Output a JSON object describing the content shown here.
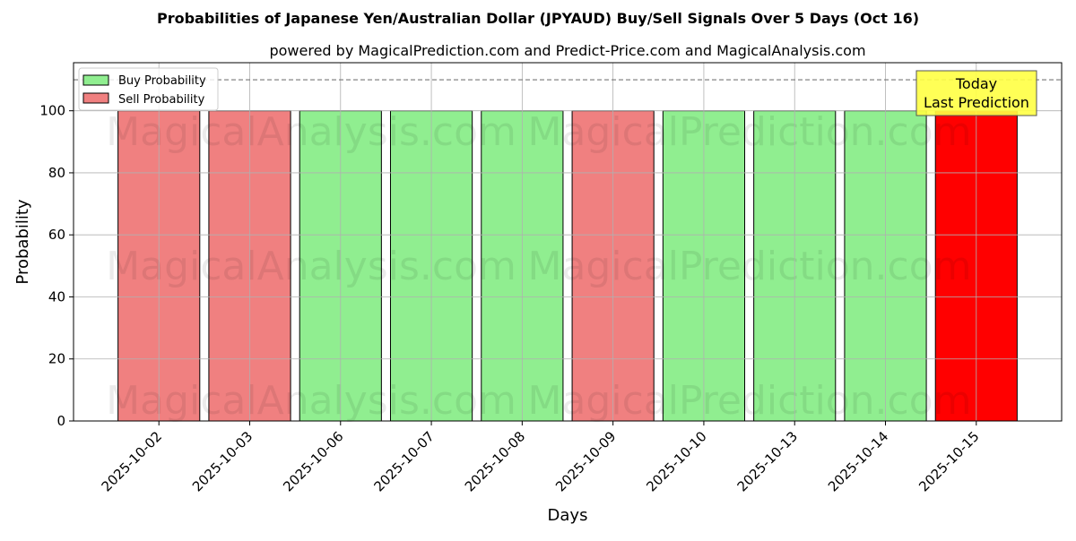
{
  "chart_data": {
    "type": "bar",
    "title": "Probabilities of Japanese Yen/Australian Dollar (JPYAUD) Buy/Sell Signals Over 5 Days (Oct 16)",
    "subtitle": "powered by MagicalPrediction.com and Predict-Price.com and MagicalAnalysis.com",
    "xlabel": "Days",
    "ylabel": "Probability",
    "ylim": [
      0,
      115.5
    ],
    "yticks": [
      0,
      20,
      40,
      60,
      80,
      100
    ],
    "grid": true,
    "legend_position": "top-left",
    "categories": [
      "2025-10-02",
      "2025-10-03",
      "2025-10-06",
      "2025-10-07",
      "2025-10-08",
      "2025-10-09",
      "2025-10-10",
      "2025-10-13",
      "2025-10-14",
      "2025-10-15"
    ],
    "values": [
      100,
      100,
      100,
      100,
      100,
      100,
      100,
      100,
      100,
      100
    ],
    "signals": [
      "Sell",
      "Sell",
      "Buy",
      "Buy",
      "Buy",
      "Sell",
      "Buy",
      "Buy",
      "Buy",
      "Sell"
    ],
    "highlight_last": true,
    "threshold_line": 110,
    "legend": [
      {
        "label": "Buy Probability",
        "color": "#90EE90"
      },
      {
        "label": "Sell Probability",
        "color": "#F08080"
      }
    ],
    "annotation": {
      "line1": "Today",
      "line2": "Last Prediction"
    },
    "colors": {
      "buy": "#90EE90",
      "sell": "#F08080",
      "last": "#FF0000",
      "annotation_bg": "#FFFF44"
    },
    "watermarks": [
      "MagicalAnalysis.com",
      "MagicalPrediction.com"
    ]
  }
}
